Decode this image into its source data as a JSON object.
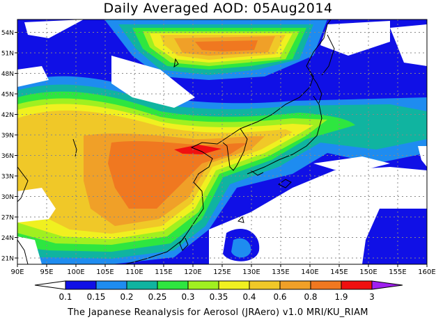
{
  "title": "Daily Averaged AOD: 05Aug2014",
  "footer": "The Japanese Reanalysis for Aerosol (JRAero) v1.0 MRI/KU_RIAM",
  "map": {
    "lon_ticks": [
      "90E",
      "95E",
      "100E",
      "105E",
      "110E",
      "115E",
      "120E",
      "125E",
      "130E",
      "135E",
      "140E",
      "145E",
      "150E",
      "155E",
      "160E"
    ],
    "lat_ticks": [
      "21N",
      "24N",
      "27N",
      "30N",
      "33N",
      "36N",
      "39N",
      "42N",
      "45N",
      "48N",
      "51N",
      "54N"
    ],
    "grid": true
  },
  "colorbar": {
    "labels": [
      "0.1",
      "0.15",
      "0.2",
      "0.25",
      "0.3",
      "0.35",
      "0.4",
      "0.6",
      "0.8",
      "1.9",
      "3"
    ],
    "colors": [
      "#ffffff",
      "#1010e6",
      "#1e8cf0",
      "#10b4a0",
      "#2ee640",
      "#a0f020",
      "#f0f020",
      "#f0c828",
      "#f0a028",
      "#f07820",
      "#f01010",
      "#a020f0"
    ]
  }
}
